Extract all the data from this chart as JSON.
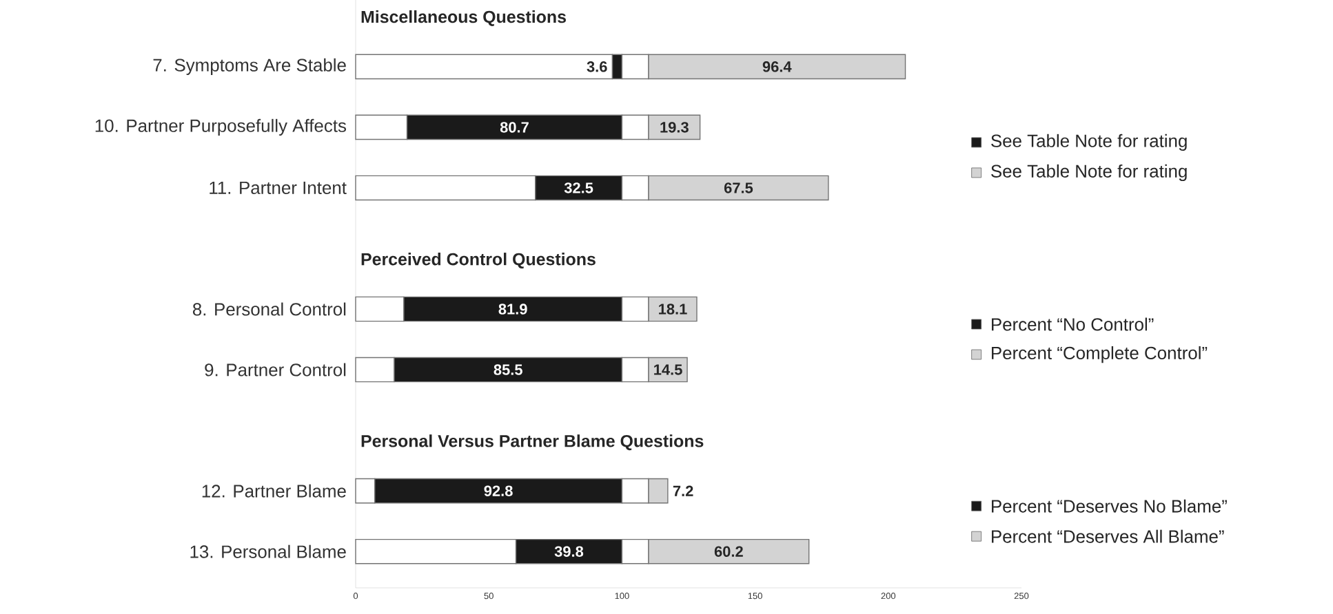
{
  "chart_data": {
    "type": "bar",
    "orientation": "horizontal",
    "stacked": true,
    "legend": "right",
    "categories": [
      null,
      "7. Symptoms Are Stable",
      "10. Partner Purposefully Affects",
      "11. Partner Intent",
      null,
      "8. Personal Control",
      "9. Partner Control",
      null,
      "12. Partner Blame",
      "13. Personal Blame"
    ],
    "annotations": [
      "Miscellaneous Questions",
      "Perceived Control Questions",
      "Personal Versus Partner Blame Questions"
    ],
    "xlim": [
      0,
      250
    ],
    "xticks": [
      0,
      50,
      100,
      150,
      200,
      250
    ],
    "series": [
      {
        "color": "#ffffff",
        "values": [
          null,
          96.4,
          19.3,
          67.5,
          null,
          18.1,
          14.5,
          null,
          7.2,
          60.2
        ]
      },
      {
        "name": "See Table Note for rating",
        "color": "#1a1a1a",
        "values": [
          null,
          3.6,
          80.7,
          32.5,
          null,
          null,
          null,
          null,
          null,
          null
        ],
        "value_labels": [
          null,
          "3.6",
          "80.7",
          "32.5",
          null,
          null,
          null,
          null,
          null,
          null
        ]
      },
      {
        "name": "Percent “No Control”",
        "color": "#1a1a1a",
        "values": [
          null,
          null,
          null,
          null,
          null,
          81.9,
          85.5,
          null,
          null,
          null
        ],
        "value_labels": [
          null,
          null,
          null,
          null,
          null,
          "81.9",
          "85.5",
          null,
          null,
          null
        ]
      },
      {
        "name": "Percent “Deserves No Blame”",
        "color": "#1a1a1a",
        "values": [
          null,
          null,
          null,
          null,
          null,
          null,
          null,
          null,
          92.8,
          39.8
        ],
        "value_labels": [
          null,
          null,
          null,
          null,
          null,
          null,
          null,
          null,
          "92.8",
          "39.8"
        ]
      },
      {
        "color": "#ffffff",
        "values": [
          null,
          10,
          10,
          10,
          null,
          10,
          10,
          null,
          10,
          10
        ]
      },
      {
        "name": "See Table Note for rating",
        "color": "#d3d3d3",
        "values": [
          null,
          96.4,
          19.3,
          67.5,
          null,
          null,
          null,
          null,
          null,
          null
        ],
        "value_labels": [
          null,
          "96.4",
          "19.3",
          "67.5",
          null,
          null,
          null,
          null,
          null,
          null
        ]
      },
      {
        "name": "Percent “Complete Control”",
        "color": "#d3d3d3",
        "values": [
          null,
          null,
          null,
          null,
          null,
          18.1,
          14.5,
          null,
          null,
          null
        ],
        "value_labels": [
          null,
          null,
          null,
          null,
          null,
          "18.1",
          "14.5",
          null,
          null,
          null
        ]
      },
      {
        "name": "Percent “Deserves All Blame”",
        "color": "#d3d3d3",
        "values": [
          null,
          null,
          null,
          null,
          null,
          null,
          null,
          null,
          7.2,
          60.2
        ],
        "value_labels": [
          null,
          null,
          null,
          null,
          null,
          null,
          null,
          null,
          "7.2",
          "60.2"
        ]
      }
    ]
  }
}
